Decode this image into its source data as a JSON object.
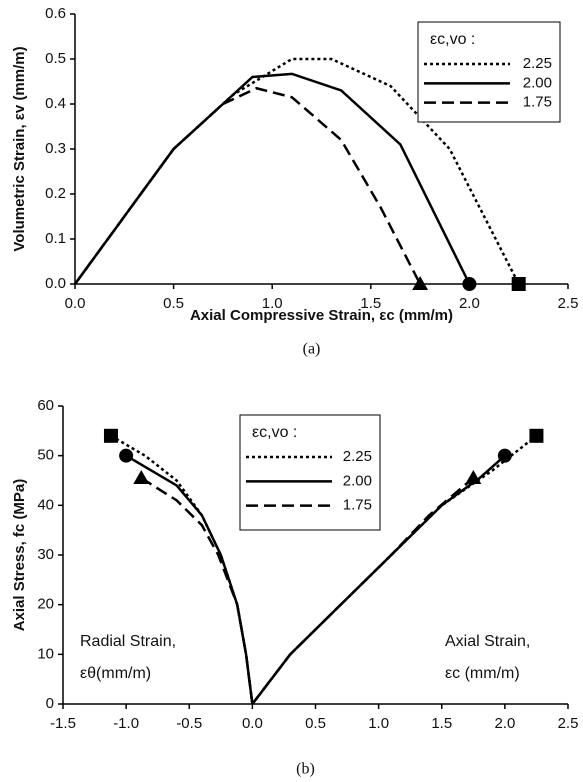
{
  "chart_data": [
    {
      "type": "line",
      "ylabel": "Volumetric Strain, εv (mm/m)",
      "xlabel": "Axial Compressive Strain, εc (mm/m)",
      "caption": "(a)",
      "legend_title": "εc,vo :",
      "legend": "upper right",
      "xlim": [
        0,
        2.5
      ],
      "xticks": [
        {
          "value": 0,
          "label": "0.0"
        },
        0.5,
        {
          "value": 1,
          "label": "1.0"
        },
        1.5,
        {
          "value": 2,
          "label": "2.0"
        },
        2.5
      ],
      "ylim": [
        0,
        0.6
      ],
      "yticks": [
        {
          "value": 0,
          "label": "0.0"
        },
        0.1,
        0.2,
        0.3,
        0.4,
        0.5,
        0.6
      ],
      "series": [
        {
          "name": "2.25",
          "color": "#000000",
          "dash": "dotted",
          "marker": "square",
          "x": [
            0,
            0.5,
            0.8,
            1.1,
            1.3,
            1.6,
            1.9,
            2.25
          ],
          "values": [
            0,
            0.3,
            0.42,
            0.5,
            0.5,
            0.44,
            0.3,
            0
          ]
        },
        {
          "name": "2.00",
          "color": "#000000",
          "dash": "solid",
          "marker": "circle",
          "x": [
            0,
            0.5,
            0.75,
            0.9,
            1.1,
            1.35,
            1.65,
            2.0
          ],
          "values": [
            0,
            0.3,
            0.4,
            0.46,
            0.467,
            0.43,
            0.31,
            0
          ]
        },
        {
          "name": "1.75",
          "color": "#000000",
          "dash": "dashed",
          "marker": "triangle",
          "x": [
            0,
            0.5,
            0.75,
            0.92,
            1.1,
            1.35,
            1.55,
            1.75
          ],
          "values": [
            0,
            0.3,
            0.4,
            0.435,
            0.415,
            0.32,
            0.17,
            0
          ]
        }
      ]
    },
    {
      "type": "line",
      "ylabel": "Axial Stress, fc (MPa)",
      "caption": "(b)",
      "legend_title": "εc,vo :",
      "legend": "upper center",
      "annotations": [
        "Radial Strain,",
        "εθ(mm/m)",
        "Axial Strain,",
        "εc  (mm/m)"
      ],
      "xlim": [
        -1.5,
        2.5
      ],
      "xticks": [
        -1.5,
        {
          "value": -1,
          "label": "-1.0"
        },
        -0.5,
        {
          "value": 0,
          "label": "0.0"
        },
        0.5,
        {
          "value": 1,
          "label": "1.0"
        },
        1.5,
        {
          "value": 2,
          "label": "2.0"
        },
        2.5
      ],
      "ylim": [
        0,
        60
      ],
      "yticks": [
        0,
        10,
        20,
        30,
        40,
        50,
        60
      ],
      "series": [
        {
          "name": "2.25",
          "color": "#000000",
          "dash": "dotted",
          "marker": "square",
          "x": [
            -1.12,
            -0.85,
            -0.6,
            -0.4,
            -0.25,
            -0.12,
            -0.05,
            0,
            null,
            0,
            0.3,
            0.7,
            1.1,
            1.5,
            1.9,
            2.25
          ],
          "values": [
            54,
            50,
            45,
            38,
            30,
            20,
            10,
            0,
            null,
            0,
            10,
            20,
            30,
            40,
            47,
            54
          ]
        },
        {
          "name": "2.00",
          "color": "#000000",
          "dash": "solid",
          "marker": "circle",
          "x": [
            -1.0,
            -0.6,
            -0.4,
            -0.25,
            -0.12,
            -0.05,
            0,
            null,
            0,
            0.3,
            0.7,
            1.1,
            1.5,
            1.8,
            2.0
          ],
          "values": [
            50,
            44,
            38,
            30,
            20,
            10,
            0,
            null,
            0,
            10,
            20,
            30,
            40,
            45.5,
            50
          ]
        },
        {
          "name": "1.75",
          "color": "#000000",
          "dash": "dashed",
          "marker": "triangle",
          "x": [
            -0.88,
            -0.6,
            -0.4,
            -0.27,
            -0.12,
            -0.05,
            0,
            null,
            0,
            0.3,
            0.7,
            1.1,
            1.4,
            1.75
          ],
          "values": [
            45.5,
            41,
            36,
            30,
            20,
            10,
            0,
            null,
            0,
            10,
            20,
            30,
            38,
            45.5
          ]
        }
      ]
    }
  ]
}
